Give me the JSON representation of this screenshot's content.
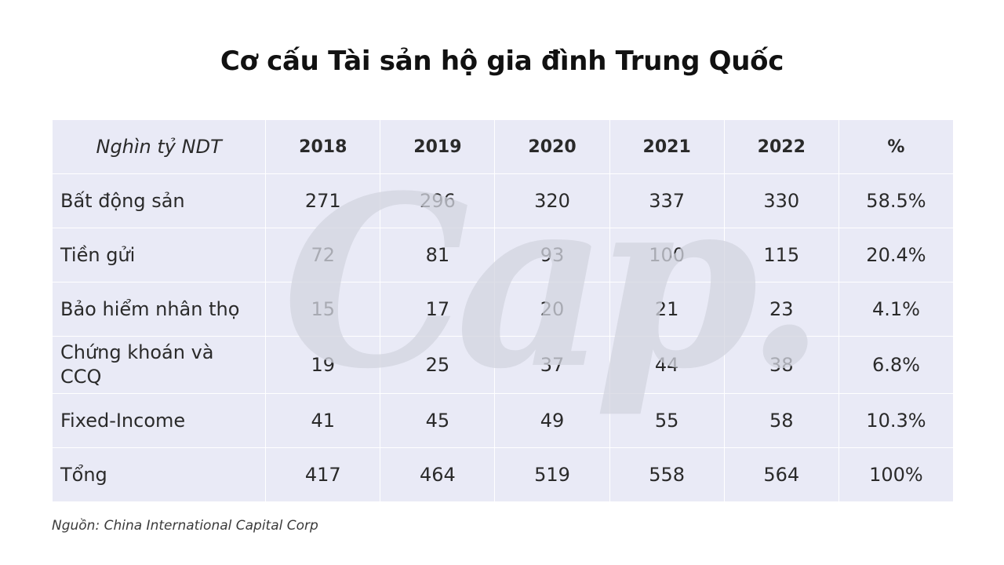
{
  "title": "Cơ cấu Tài sản hộ gia đình Trung Quốc",
  "watermark": "Cap.",
  "source": {
    "label": "Nguồn:",
    "text": "China International Capital Corp"
  },
  "chart_data": {
    "type": "table",
    "title": "Cơ cấu Tài sản hộ gia đình Trung Quốc",
    "columns": [
      "Nghìn tỷ NDT",
      "2018",
      "2019",
      "2020",
      "2021",
      "2022",
      "%"
    ],
    "rows": [
      {
        "label": "Bất động sản",
        "values": [
          "271",
          "296",
          "320",
          "337",
          "330",
          "58.5%"
        ]
      },
      {
        "label": "Tiền gửi",
        "values": [
          "72",
          "81",
          "93",
          "100",
          "115",
          "20.4%"
        ]
      },
      {
        "label": "Bảo hiểm nhân thọ",
        "values": [
          "15",
          "17",
          "20",
          "21",
          "23",
          "4.1%"
        ]
      },
      {
        "label": "Chứng khoán và CCQ",
        "values": [
          "19",
          "25",
          "37",
          "44",
          "38",
          "6.8%"
        ]
      },
      {
        "label": "Fixed-Income",
        "values": [
          "41",
          "45",
          "49",
          "55",
          "58",
          "10.3%"
        ]
      },
      {
        "label": "Tổng",
        "values": [
          "417",
          "464",
          "519",
          "558",
          "564",
          "100%"
        ]
      }
    ]
  }
}
